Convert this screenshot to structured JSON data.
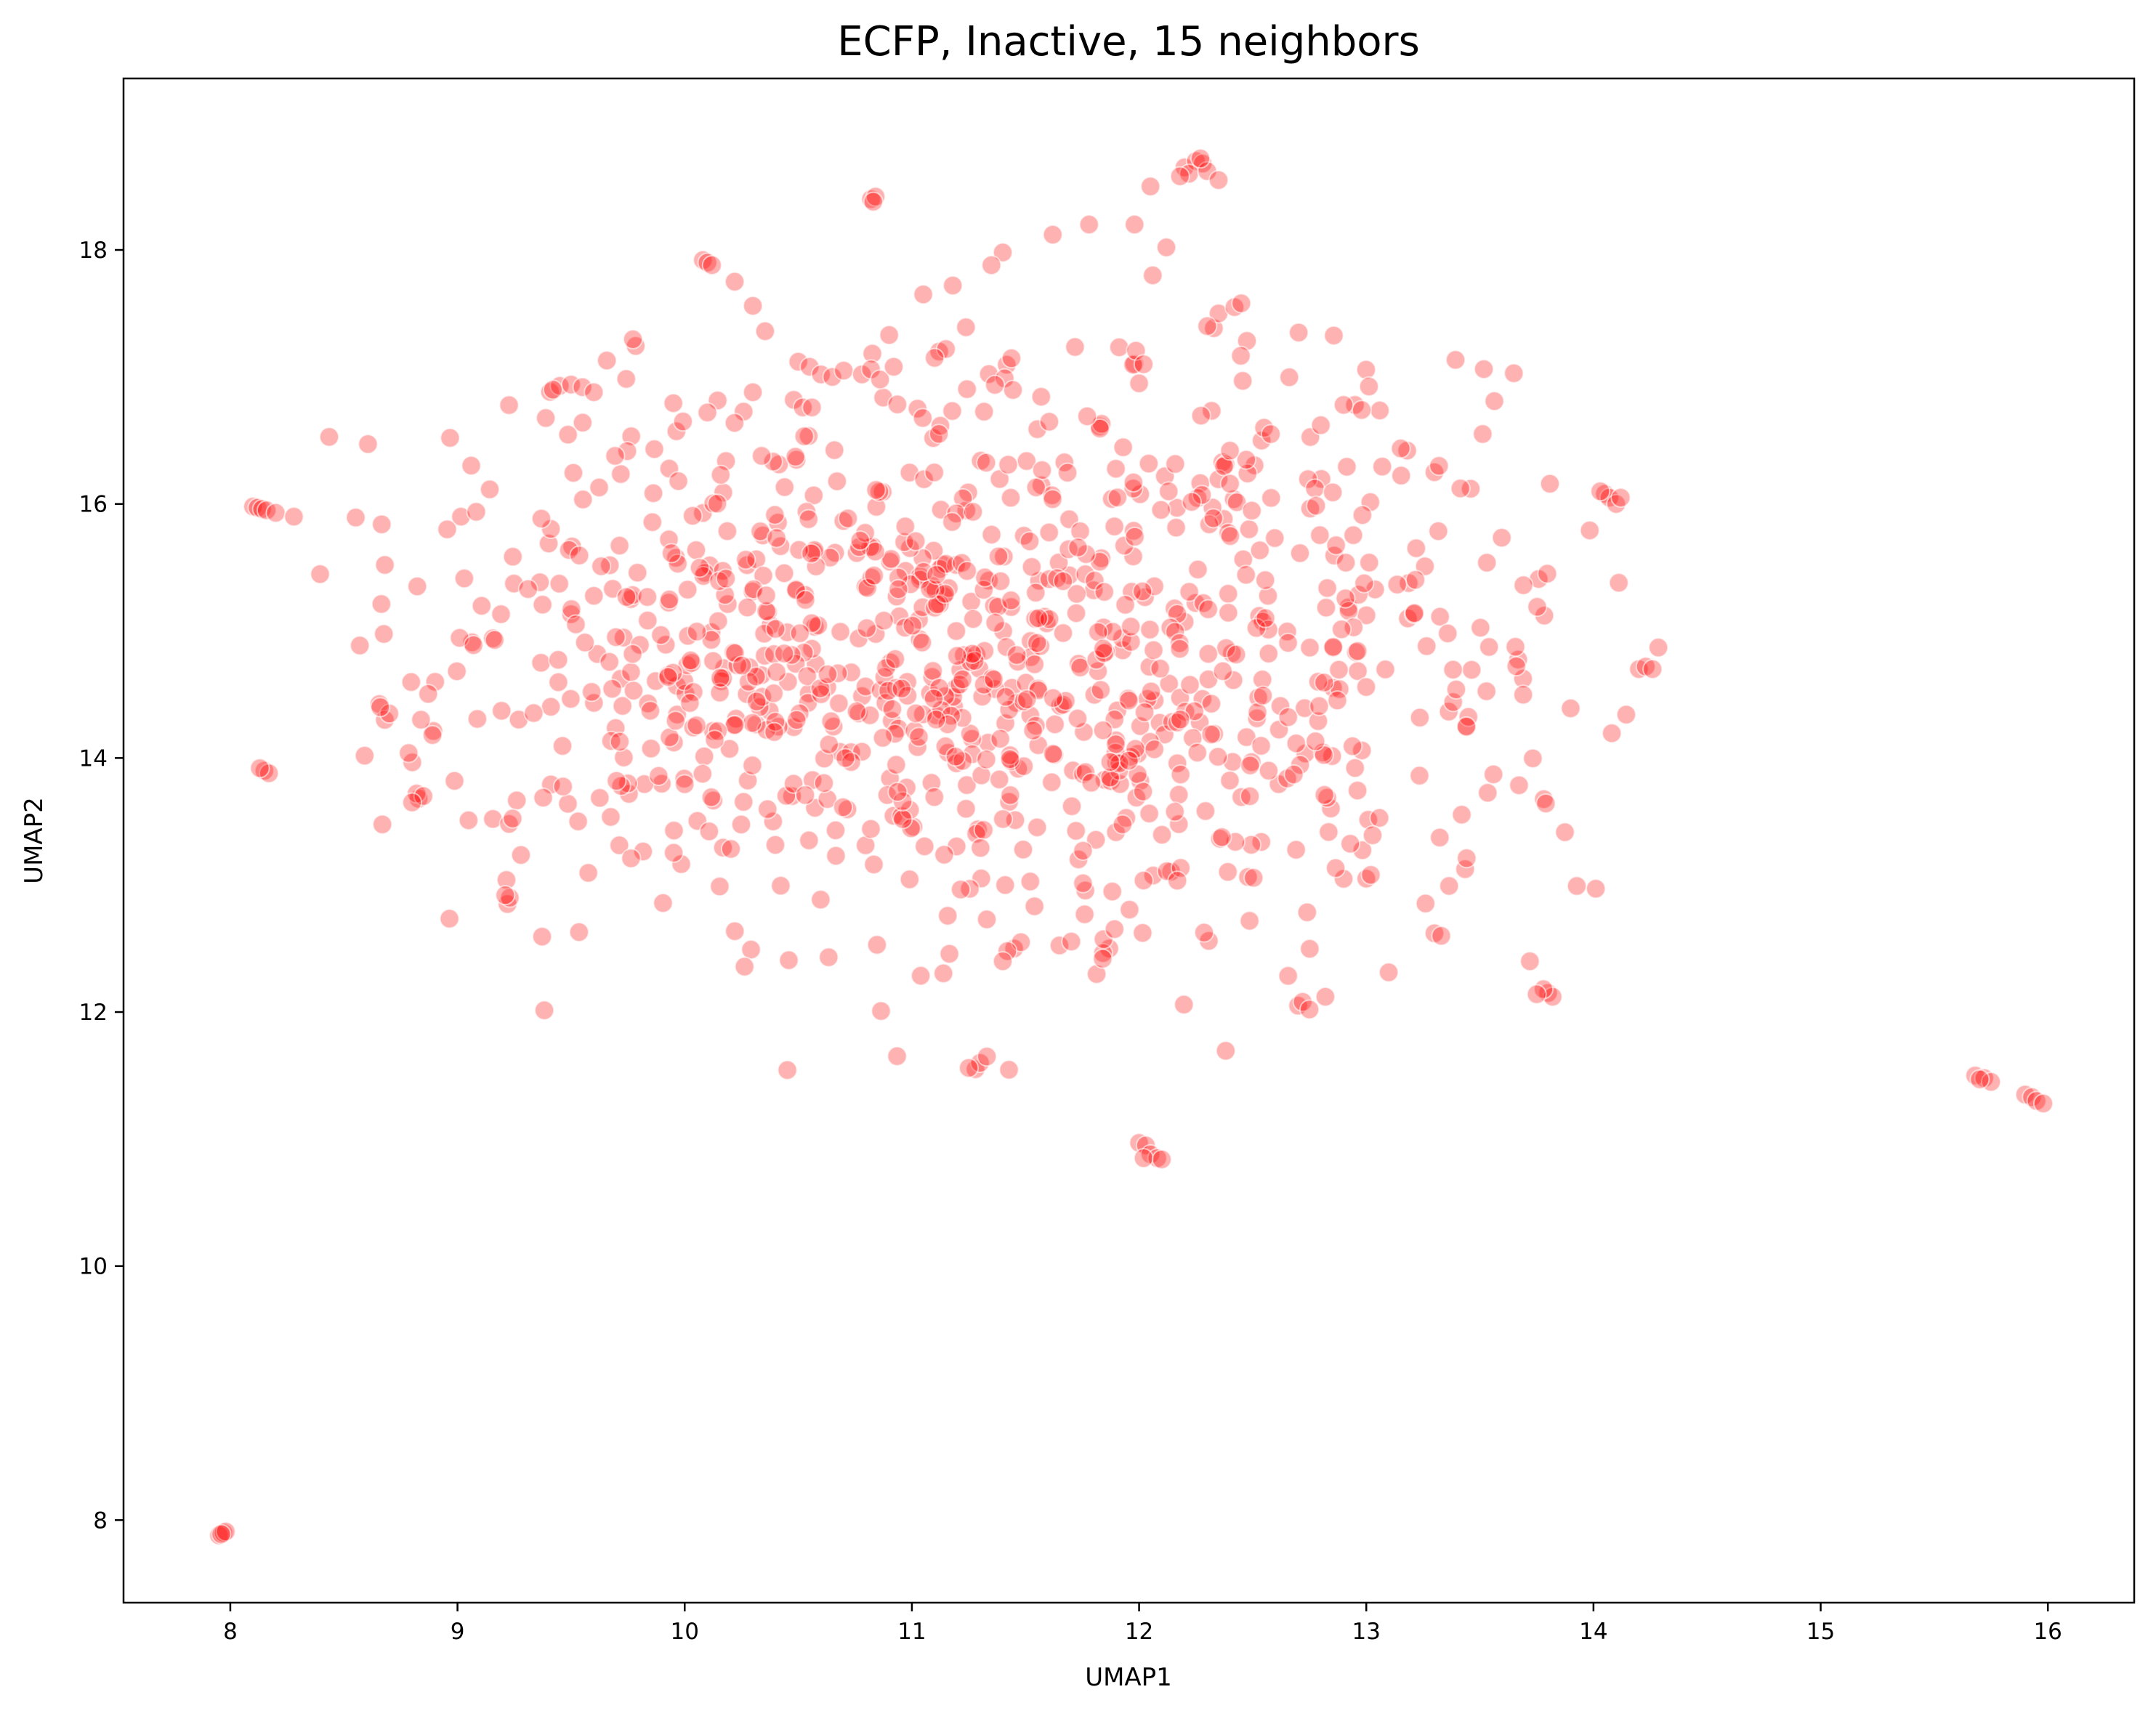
{
  "chart_data": {
    "type": "scatter",
    "title": "ECFP, Inactive, 15 neighbors",
    "xlabel": "UMAP1",
    "ylabel": "UMAP2",
    "xlim": [
      7.53,
      16.38
    ],
    "ylim": [
      7.35,
      19.35
    ],
    "xticks": [
      "8",
      "9",
      "10",
      "11",
      "12",
      "13",
      "14",
      "15",
      "16"
    ],
    "yticks": [
      "8",
      "10",
      "12",
      "14",
      "16",
      "18"
    ],
    "grid": false,
    "legend": "none",
    "marker_color": "#ff0000",
    "series": [
      {
        "points": [
          [
            7.95,
            7.88
          ],
          [
            7.97,
            7.9
          ],
          [
            7.98,
            7.91
          ],
          [
            15.68,
            11.5
          ],
          [
            15.72,
            11.48
          ],
          [
            15.75,
            11.45
          ],
          [
            15.9,
            11.35
          ],
          [
            15.93,
            11.33
          ],
          [
            15.95,
            11.3
          ],
          [
            15.98,
            11.28
          ],
          [
            12.0,
            10.97
          ],
          [
            12.03,
            10.95
          ],
          [
            12.05,
            10.88
          ],
          [
            12.08,
            10.85
          ],
          [
            12.02,
            10.85
          ],
          [
            10.82,
            18.4
          ],
          [
            10.84,
            18.42
          ],
          [
            10.83,
            18.38
          ],
          [
            12.2,
            18.65
          ],
          [
            12.25,
            18.7
          ],
          [
            12.28,
            18.68
          ],
          [
            12.22,
            18.6
          ],
          [
            12.3,
            18.62
          ],
          [
            12.18,
            18.58
          ],
          [
            12.35,
            18.55
          ],
          [
            12.27,
            18.72
          ],
          [
            12.05,
            18.5
          ],
          [
            11.98,
            18.2
          ],
          [
            11.78,
            18.2
          ],
          [
            11.62,
            18.12
          ],
          [
            12.12,
            18.02
          ],
          [
            12.06,
            17.8
          ],
          [
            10.08,
            17.92
          ],
          [
            10.1,
            17.9
          ],
          [
            10.12,
            17.88
          ],
          [
            10.22,
            17.75
          ],
          [
            10.3,
            17.56
          ],
          [
            11.4,
            17.98
          ],
          [
            11.35,
            17.88
          ],
          [
            11.18,
            17.72
          ],
          [
            11.05,
            17.65
          ],
          [
            10.9,
            17.33
          ],
          [
            12.35,
            17.5
          ],
          [
            12.42,
            17.55
          ],
          [
            12.45,
            17.58
          ],
          [
            12.3,
            17.4
          ],
          [
            11.12,
            17.2
          ],
          [
            11.15,
            17.22
          ],
          [
            11.1,
            17.15
          ],
          [
            12.02,
            17.1
          ],
          [
            12.0,
            16.95
          ],
          [
            9.45,
            16.93
          ],
          [
            9.5,
            16.94
          ],
          [
            9.55,
            16.92
          ],
          [
            9.6,
            16.88
          ],
          [
            9.42,
            16.9
          ],
          [
            10.5,
            17.12
          ],
          [
            10.55,
            17.08
          ],
          [
            10.6,
            17.02
          ],
          [
            10.65,
            17.0
          ],
          [
            10.7,
            17.05
          ],
          [
            10.78,
            17.02
          ],
          [
            10.82,
            17.06
          ],
          [
            10.86,
            16.98
          ],
          [
            10.92,
            17.08
          ],
          [
            10.3,
            16.88
          ],
          [
            10.48,
            16.82
          ],
          [
            10.52,
            16.76
          ],
          [
            10.56,
            16.76
          ],
          [
            10.1,
            16.72
          ],
          [
            8.1,
            15.98
          ],
          [
            8.12,
            15.97
          ],
          [
            8.14,
            15.96
          ],
          [
            8.16,
            15.95
          ],
          [
            8.2,
            15.93
          ],
          [
            8.28,
            15.9
          ],
          [
            8.15,
            13.9
          ],
          [
            8.17,
            13.88
          ],
          [
            8.13,
            13.92
          ],
          [
            14.05,
            16.08
          ],
          [
            14.07,
            16.05
          ],
          [
            14.1,
            16.0
          ],
          [
            14.12,
            16.05
          ],
          [
            14.03,
            16.1
          ],
          [
            14.2,
            14.7
          ],
          [
            14.23,
            14.72
          ],
          [
            14.26,
            14.7
          ],
          [
            13.3,
            16.25
          ],
          [
            13.32,
            16.3
          ],
          [
            12.95,
            16.78
          ],
          [
            12.98,
            16.74
          ],
          [
            12.9,
            16.78
          ],
          [
            12.55,
            16.6
          ],
          [
            12.58,
            16.55
          ],
          [
            12.8,
            16.62
          ],
          [
            12.4,
            16.42
          ],
          [
            13.8,
            12.15
          ],
          [
            13.82,
            12.12
          ],
          [
            13.78,
            12.18
          ],
          [
            13.75,
            12.14
          ],
          [
            13.72,
            12.4
          ],
          [
            12.7,
            12.05
          ],
          [
            12.72,
            12.08
          ],
          [
            12.75,
            12.02
          ],
          [
            12.82,
            12.12
          ],
          [
            11.28,
            11.55
          ],
          [
            11.3,
            11.6
          ],
          [
            11.25,
            11.56
          ],
          [
            11.33,
            11.65
          ],
          [
            11.45,
            12.5
          ],
          [
            11.48,
            12.55
          ],
          [
            11.42,
            12.48
          ],
          [
            11.4,
            12.4
          ],
          [
            13.0,
            13.05
          ],
          [
            13.02,
            13.08
          ],
          [
            13.3,
            12.62
          ],
          [
            13.33,
            12.6
          ],
          [
            9.22,
            12.85
          ],
          [
            9.23,
            12.9
          ],
          [
            9.21,
            12.92
          ],
          [
            8.68,
            14.3
          ],
          [
            8.7,
            14.35
          ],
          [
            8.66,
            14.4
          ],
          [
            8.82,
            13.72
          ],
          [
            8.85,
            13.7
          ],
          [
            8.8,
            13.65
          ],
          [
            9.75,
            13.8
          ],
          [
            9.72,
            13.78
          ],
          [
            9.7,
            13.82
          ],
          [
            7.96,
            7.89
          ],
          [
            12.1,
            10.84
          ],
          [
            15.7,
            11.47
          ]
        ]
      }
    ],
    "cloud": {
      "count": 1050,
      "x_mean": 11.3,
      "y_mean": 14.9,
      "x_sd": 1.25,
      "y_sd": 1.15,
      "x_range": [
        8.35,
        14.3
      ],
      "y_range": [
        11.45,
        17.4
      ],
      "seed": 7
    }
  }
}
